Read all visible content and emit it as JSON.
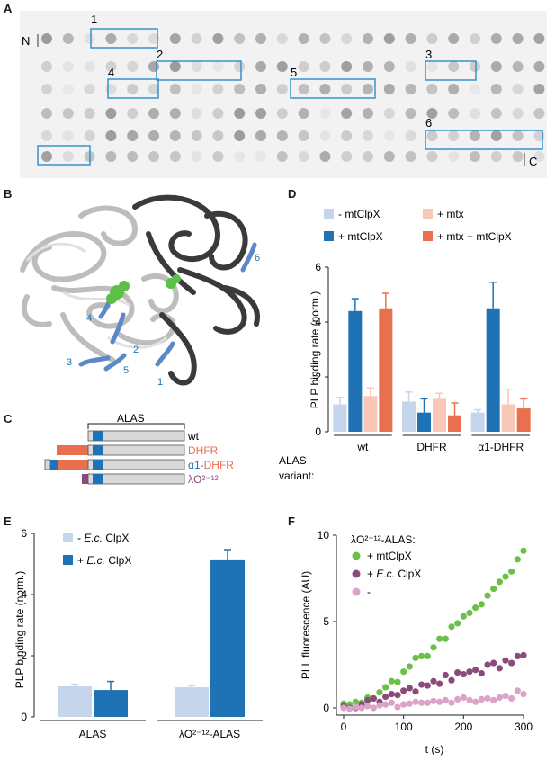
{
  "panels": {
    "A": "A",
    "B": "B",
    "C": "C",
    "D": "D",
    "E": "E",
    "F": "F"
  },
  "panel_a": {
    "n_label": "N",
    "c_label": "C",
    "boxes": [
      "1",
      "2",
      "3",
      "4",
      "5",
      "6"
    ]
  },
  "panel_b": {
    "helix_labels": [
      "1",
      "2",
      "3",
      "4",
      "5",
      "6"
    ]
  },
  "panel_c": {
    "header": "ALAS",
    "constructs": [
      {
        "label": "wt",
        "color": "#1a1a1a"
      },
      {
        "label": "DHFR",
        "color": "#e8704f"
      },
      {
        "label_a": "α1-",
        "label_b": "DHFR",
        "color_a": "#1f73b5",
        "color_b": "#e8704f"
      },
      {
        "label": "λO²⁻¹²",
        "color": "#8a4a7a"
      }
    ]
  },
  "chart_data": [
    {
      "panel": "D",
      "type": "bar",
      "ylabel": "PLP binding rate (norm.)",
      "ylim": [
        0,
        6
      ],
      "yticks": [
        "0",
        "2",
        "4",
        "6"
      ],
      "xaxis_title": [
        "ALAS",
        "variant:"
      ],
      "categories": [
        "wt",
        "DHFR",
        "α1-DHFR"
      ],
      "series": [
        {
          "name": "-  mtClpX",
          "color": "#c5d5ec",
          "values": [
            1.0,
            1.1,
            0.7
          ],
          "errors": [
            0.25,
            0.35,
            0.1
          ]
        },
        {
          "name": "+ mtClpX",
          "color": "#1f73b5",
          "values": [
            4.4,
            0.7,
            4.5
          ],
          "errors": [
            0.45,
            0.5,
            0.95
          ]
        },
        {
          "name": "+ mtx",
          "color": "#f8c7b6",
          "values": [
            1.3,
            1.2,
            1.0
          ],
          "errors": [
            0.3,
            0.2,
            0.55
          ]
        },
        {
          "name": "+ mtx + mtClpX",
          "color": "#e8704f",
          "values": [
            4.5,
            0.6,
            0.85
          ],
          "errors": [
            0.55,
            0.45,
            0.35
          ]
        }
      ],
      "legend_position": "top"
    },
    {
      "panel": "E",
      "type": "bar",
      "ylabel": "PLP binding rate (norm.)",
      "ylim": [
        0,
        6
      ],
      "yticks": [
        "0",
        "2",
        "4",
        "6"
      ],
      "categories": [
        "ALAS",
        "λO²⁻¹²-ALAS"
      ],
      "series": [
        {
          "name_a": "-  ",
          "name_b": "E.c.",
          "name_c": " ClpX",
          "color": "#c5d5ec",
          "values": [
            1.0,
            0.97
          ],
          "errors": [
            0.07,
            0.05
          ]
        },
        {
          "name_a": "+ ",
          "name_b": "E.c.",
          "name_c": " ClpX",
          "color": "#1f73b5",
          "values": [
            0.88,
            5.15
          ],
          "errors": [
            0.28,
            0.32
          ]
        }
      ],
      "legend_position": "top-left"
    },
    {
      "panel": "F",
      "type": "scatter",
      "xlabel": "t (s)",
      "ylabel": "PLL fluorescence (AU)",
      "xlim": [
        0,
        300
      ],
      "ylim": [
        0,
        10
      ],
      "xticks": [
        "0",
        "100",
        "200",
        "300"
      ],
      "yticks": [
        "0",
        "5",
        "10"
      ],
      "legend_title": "λO²⁻¹²-ALAS:",
      "series": [
        {
          "name": "+ mtClpX",
          "color": "#6cc04a",
          "x": [
            0,
            10,
            20,
            30,
            40,
            50,
            60,
            70,
            80,
            90,
            100,
            110,
            120,
            130,
            140,
            150,
            160,
            170,
            180,
            190,
            200,
            210,
            220,
            230,
            240,
            250,
            260,
            270,
            280,
            290,
            300
          ],
          "y": [
            0.25,
            0.2,
            0.35,
            0.3,
            0.6,
            0.55,
            0.9,
            1.2,
            1.55,
            1.5,
            2.1,
            2.4,
            2.9,
            3.0,
            3.0,
            3.5,
            4.0,
            4.0,
            4.7,
            4.9,
            5.3,
            5.5,
            5.8,
            6.0,
            6.5,
            6.9,
            7.3,
            7.6,
            7.9,
            8.6,
            9.1
          ]
        },
        {
          "name_a": "+ ",
          "name_b": "E.c.",
          "name_c": " ClpX",
          "color": "#8a4a7a",
          "x": [
            0,
            10,
            20,
            30,
            40,
            50,
            60,
            70,
            80,
            90,
            100,
            110,
            120,
            130,
            140,
            150,
            160,
            170,
            180,
            190,
            200,
            210,
            220,
            230,
            240,
            250,
            260,
            270,
            280,
            290,
            300
          ],
          "y": [
            0.1,
            0.0,
            0.0,
            0.2,
            0.45,
            0.55,
            0.35,
            0.65,
            0.8,
            0.75,
            1.0,
            1.15,
            0.95,
            1.35,
            1.3,
            1.55,
            1.4,
            1.9,
            1.6,
            2.05,
            1.95,
            2.1,
            2.2,
            2.0,
            2.5,
            2.6,
            2.3,
            2.75,
            2.6,
            3.0,
            3.05
          ]
        },
        {
          "name": "-",
          "color": "#dba3c8",
          "x": [
            0,
            10,
            20,
            30,
            40,
            50,
            60,
            70,
            80,
            90,
            100,
            110,
            120,
            130,
            140,
            150,
            160,
            170,
            180,
            190,
            200,
            210,
            220,
            230,
            240,
            250,
            260,
            270,
            280,
            290,
            300
          ],
          "y": [
            0.0,
            -0.05,
            0.05,
            0.0,
            0.1,
            0.0,
            0.15,
            0.2,
            0.3,
            0.05,
            0.2,
            0.25,
            0.35,
            0.3,
            0.3,
            0.4,
            0.35,
            0.45,
            0.3,
            0.5,
            0.6,
            0.45,
            0.35,
            0.5,
            0.55,
            0.45,
            0.6,
            0.7,
            0.55,
            1.0,
            0.8
          ]
        }
      ],
      "legend_position": "top-left"
    }
  ]
}
